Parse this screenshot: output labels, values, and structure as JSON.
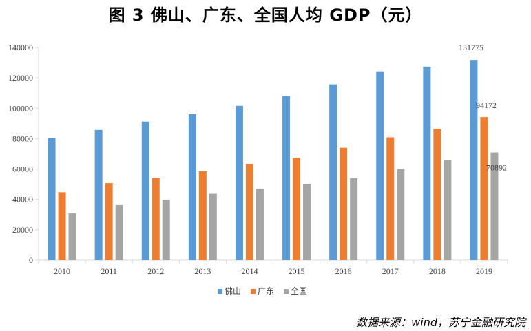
{
  "chart_data": {
    "type": "bar",
    "title": "图 3   佛山、广东、全国人均 GDP（元）",
    "xlabel": "",
    "ylabel": "",
    "ylim": [
      0,
      140000
    ],
    "yticks": [
      0,
      20000,
      40000,
      60000,
      80000,
      100000,
      120000,
      140000
    ],
    "categories": [
      "2010",
      "2011",
      "2012",
      "2013",
      "2014",
      "2015",
      "2016",
      "2017",
      "2018",
      "2019"
    ],
    "series": [
      {
        "name": "佛山",
        "color": "#5b9bd5",
        "values": [
          80300,
          85700,
          91200,
          96100,
          101600,
          108000,
          115700,
          124300,
          127400,
          131775
        ]
      },
      {
        "name": "广东",
        "color": "#ed7d31",
        "values": [
          44700,
          50700,
          54100,
          58700,
          63300,
          67400,
          74000,
          80900,
          86400,
          94172
        ]
      },
      {
        "name": "全国",
        "color": "#a5a5a5",
        "values": [
          30800,
          36300,
          39800,
          43700,
          47000,
          50200,
          54100,
          60000,
          66000,
          70892
        ]
      }
    ],
    "data_labels": [
      {
        "series": 0,
        "index": 9,
        "text": "131775"
      },
      {
        "series": 1,
        "index": 9,
        "text": "94172"
      },
      {
        "series": 2,
        "index": 9,
        "text": "70892"
      }
    ],
    "legend_position": "bottom",
    "grid": false
  },
  "source": "数据来源：wind，苏宁金融研究院"
}
